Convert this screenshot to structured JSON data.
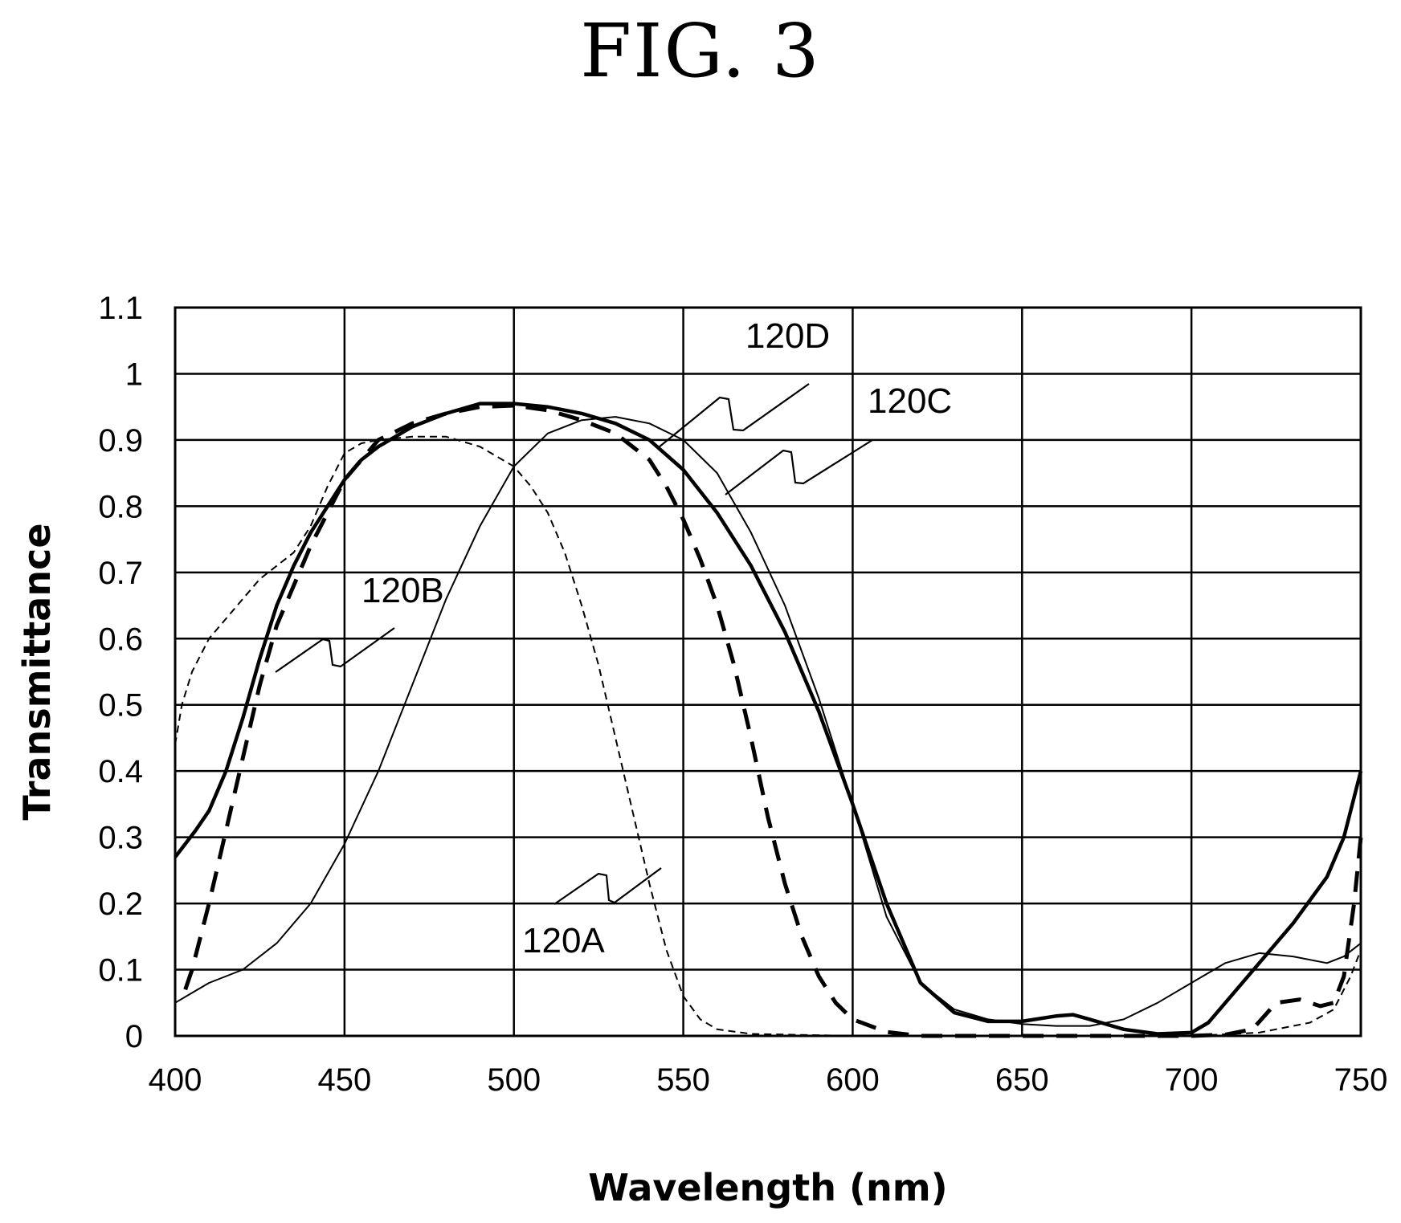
{
  "figure": {
    "title": "FIG. 3"
  },
  "chart_data": {
    "type": "line",
    "title": "FIG. 3",
    "xlabel": "Wavelength (nm)",
    "ylabel": "Transmittance",
    "xlim": [
      400,
      750
    ],
    "ylim": [
      0,
      1.1
    ],
    "grid": true,
    "x_ticks": [
      {
        "value": 400,
        "label": "400"
      },
      {
        "value": 450,
        "label": "450"
      },
      {
        "value": 500,
        "label": "500"
      },
      {
        "value": 550,
        "label": "550"
      },
      {
        "value": 600,
        "label": "600"
      },
      {
        "value": 650,
        "label": "650"
      },
      {
        "value": 700,
        "label": "700"
      },
      {
        "value": 750,
        "label": "750"
      }
    ],
    "y_ticks": [
      {
        "value": 0,
        "label": "0"
      },
      {
        "value": 0.1,
        "label": "0.1"
      },
      {
        "value": 0.2,
        "label": "0.2"
      },
      {
        "value": 0.3,
        "label": "0.3"
      },
      {
        "value": 0.4,
        "label": "0.4"
      },
      {
        "value": 0.5,
        "label": "0.5"
      },
      {
        "value": 0.6,
        "label": "0.6"
      },
      {
        "value": 0.7,
        "label": "0.7"
      },
      {
        "value": 0.8,
        "label": "0.8"
      },
      {
        "value": 0.9,
        "label": "0.9"
      },
      {
        "value": 1,
        "label": "1"
      },
      {
        "value": 1.1,
        "label": "1.1"
      }
    ],
    "series": [
      {
        "name": "120A",
        "style": "thin-dashed",
        "points": [
          [
            400,
            0.44
          ],
          [
            402,
            0.5
          ],
          [
            405,
            0.55
          ],
          [
            410,
            0.6
          ],
          [
            415,
            0.63
          ],
          [
            420,
            0.66
          ],
          [
            425,
            0.69
          ],
          [
            430,
            0.71
          ],
          [
            435,
            0.73
          ],
          [
            440,
            0.77
          ],
          [
            445,
            0.83
          ],
          [
            450,
            0.88
          ],
          [
            455,
            0.895
          ],
          [
            460,
            0.9
          ],
          [
            470,
            0.905
          ],
          [
            480,
            0.905
          ],
          [
            490,
            0.89
          ],
          [
            500,
            0.86
          ],
          [
            505,
            0.83
          ],
          [
            510,
            0.79
          ],
          [
            515,
            0.73
          ],
          [
            520,
            0.65
          ],
          [
            525,
            0.56
          ],
          [
            530,
            0.45
          ],
          [
            535,
            0.34
          ],
          [
            540,
            0.23
          ],
          [
            545,
            0.13
          ],
          [
            550,
            0.06
          ],
          [
            555,
            0.025
          ],
          [
            560,
            0.01
          ],
          [
            570,
            0.003
          ],
          [
            600,
            0.0
          ],
          [
            650,
            0.0
          ],
          [
            700,
            0.0
          ],
          [
            720,
            0.005
          ],
          [
            735,
            0.02
          ],
          [
            742,
            0.04
          ],
          [
            747,
            0.09
          ],
          [
            750,
            0.13
          ]
        ]
      },
      {
        "name": "120B",
        "style": "thick-solid",
        "points": [
          [
            400,
            0.27
          ],
          [
            403,
            0.29
          ],
          [
            406,
            0.31
          ],
          [
            410,
            0.34
          ],
          [
            415,
            0.4
          ],
          [
            420,
            0.48
          ],
          [
            425,
            0.57
          ],
          [
            430,
            0.65
          ],
          [
            435,
            0.71
          ],
          [
            440,
            0.76
          ],
          [
            445,
            0.8
          ],
          [
            450,
            0.84
          ],
          [
            455,
            0.87
          ],
          [
            460,
            0.89
          ],
          [
            470,
            0.92
          ],
          [
            480,
            0.94
          ],
          [
            490,
            0.955
          ],
          [
            500,
            0.955
          ],
          [
            510,
            0.95
          ],
          [
            520,
            0.94
          ],
          [
            530,
            0.925
          ],
          [
            540,
            0.9
          ],
          [
            550,
            0.855
          ],
          [
            560,
            0.79
          ],
          [
            570,
            0.71
          ],
          [
            580,
            0.61
          ],
          [
            590,
            0.49
          ],
          [
            600,
            0.35
          ],
          [
            610,
            0.2
          ],
          [
            620,
            0.08
          ],
          [
            630,
            0.035
          ],
          [
            640,
            0.022
          ],
          [
            650,
            0.022
          ],
          [
            660,
            0.03
          ],
          [
            665,
            0.032
          ],
          [
            670,
            0.025
          ],
          [
            680,
            0.01
          ],
          [
            690,
            0.003
          ],
          [
            700,
            0.005
          ],
          [
            705,
            0.02
          ],
          [
            710,
            0.05
          ],
          [
            720,
            0.11
          ],
          [
            730,
            0.17
          ],
          [
            740,
            0.24
          ],
          [
            745,
            0.3
          ],
          [
            750,
            0.4
          ]
        ]
      },
      {
        "name": "120C",
        "style": "thick-dashed",
        "points": [
          [
            403,
            0.07
          ],
          [
            405,
            0.1
          ],
          [
            410,
            0.2
          ],
          [
            415,
            0.31
          ],
          [
            420,
            0.42
          ],
          [
            425,
            0.53
          ],
          [
            430,
            0.62
          ],
          [
            435,
            0.68
          ],
          [
            440,
            0.74
          ],
          [
            445,
            0.79
          ],
          [
            450,
            0.84
          ],
          [
            455,
            0.87
          ],
          [
            460,
            0.9
          ],
          [
            470,
            0.925
          ],
          [
            480,
            0.94
          ],
          [
            490,
            0.95
          ],
          [
            500,
            0.952
          ],
          [
            510,
            0.945
          ],
          [
            520,
            0.93
          ],
          [
            530,
            0.91
          ],
          [
            540,
            0.87
          ],
          [
            545,
            0.83
          ],
          [
            550,
            0.78
          ],
          [
            555,
            0.72
          ],
          [
            560,
            0.65
          ],
          [
            565,
            0.56
          ],
          [
            570,
            0.45
          ],
          [
            575,
            0.33
          ],
          [
            580,
            0.23
          ],
          [
            585,
            0.15
          ],
          [
            590,
            0.09
          ],
          [
            595,
            0.05
          ],
          [
            600,
            0.025
          ],
          [
            610,
            0.006
          ],
          [
            620,
            0.0
          ],
          [
            650,
            0.0
          ],
          [
            700,
            0.0
          ],
          [
            710,
            0.002
          ],
          [
            718,
            0.01
          ],
          [
            725,
            0.05
          ],
          [
            732,
            0.055
          ],
          [
            738,
            0.045
          ],
          [
            742,
            0.05
          ],
          [
            745,
            0.09
          ],
          [
            748,
            0.2
          ],
          [
            750,
            0.3
          ]
        ]
      },
      {
        "name": "120D",
        "style": "thin-solid",
        "points": [
          [
            400,
            0.05
          ],
          [
            405,
            0.065
          ],
          [
            410,
            0.08
          ],
          [
            420,
            0.1
          ],
          [
            430,
            0.14
          ],
          [
            440,
            0.2
          ],
          [
            450,
            0.29
          ],
          [
            460,
            0.4
          ],
          [
            470,
            0.53
          ],
          [
            480,
            0.66
          ],
          [
            490,
            0.77
          ],
          [
            500,
            0.86
          ],
          [
            510,
            0.91
          ],
          [
            520,
            0.93
          ],
          [
            530,
            0.935
          ],
          [
            540,
            0.925
          ],
          [
            550,
            0.9
          ],
          [
            560,
            0.85
          ],
          [
            570,
            0.76
          ],
          [
            580,
            0.65
          ],
          [
            590,
            0.51
          ],
          [
            600,
            0.35
          ],
          [
            610,
            0.18
          ],
          [
            620,
            0.08
          ],
          [
            630,
            0.04
          ],
          [
            640,
            0.025
          ],
          [
            650,
            0.018
          ],
          [
            660,
            0.015
          ],
          [
            670,
            0.015
          ],
          [
            680,
            0.025
          ],
          [
            690,
            0.05
          ],
          [
            700,
            0.08
          ],
          [
            710,
            0.11
          ],
          [
            720,
            0.125
          ],
          [
            730,
            0.12
          ],
          [
            740,
            0.11
          ],
          [
            745,
            0.12
          ],
          [
            750,
            0.14
          ]
        ]
      }
    ],
    "annotations": [
      {
        "label": "120A",
        "series": "120A"
      },
      {
        "label": "120B",
        "series": "120B"
      },
      {
        "label": "120C",
        "series": "120C"
      },
      {
        "label": "120D",
        "series": "120D"
      }
    ]
  }
}
